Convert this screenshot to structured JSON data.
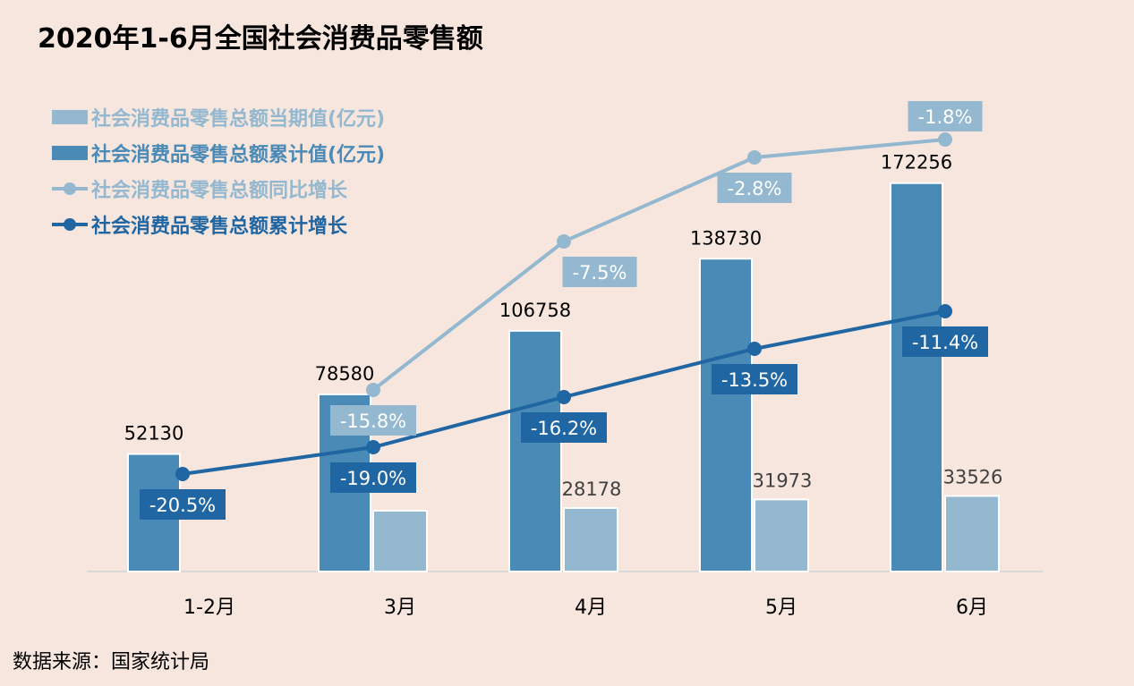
{
  "title": "2020年1-6月全国社会消费品零售额",
  "source": "数据来源：国家统计局",
  "colors": {
    "background": "#f7e6de",
    "bar_current": "#93b8cf",
    "bar_cumulative": "#4a8ab6",
    "line_yoy": "#93b8cf",
    "line_cumulative": "#1f66a3",
    "axis": "#d9d9d9"
  },
  "chart_data": {
    "type": "bar",
    "categories": [
      "1-2月",
      "3月",
      "4月",
      "5月",
      "6月"
    ],
    "series": [
      {
        "name": "社会消费品零售总额当期值(亿元)",
        "kind": "bar",
        "values": [
          null,
          null,
          28178,
          31973,
          33526
        ],
        "labels": [
          "",
          "",
          "28178",
          "31973",
          "33526"
        ]
      },
      {
        "name": "社会消费品零售总额累计值(亿元)",
        "kind": "bar",
        "values": [
          52130,
          78580,
          106758,
          138730,
          172256
        ],
        "labels": [
          "52130",
          "78580",
          "106758",
          "138730",
          "172256"
        ]
      },
      {
        "name": "社会消费品零售总额同比增长",
        "kind": "line",
        "values": [
          null,
          -15.8,
          -7.5,
          -2.8,
          -1.8
        ],
        "labels": [
          "",
          "-15.8%",
          "-7.5%",
          "-2.8%",
          "-1.8%"
        ]
      },
      {
        "name": "社会消费品零售总额累计增长",
        "kind": "line",
        "values": [
          -20.5,
          -19.0,
          -16.2,
          -13.5,
          -11.4
        ],
        "labels": [
          "-20.5%",
          "-19.0%",
          "-16.2%",
          "-13.5%",
          "-11.4%"
        ]
      }
    ],
    "bar_axis_range": [
      0,
      190000
    ],
    "line_axis_range": [
      -22,
      -0.5
    ],
    "legend_position": "top-left",
    "grid": false
  }
}
